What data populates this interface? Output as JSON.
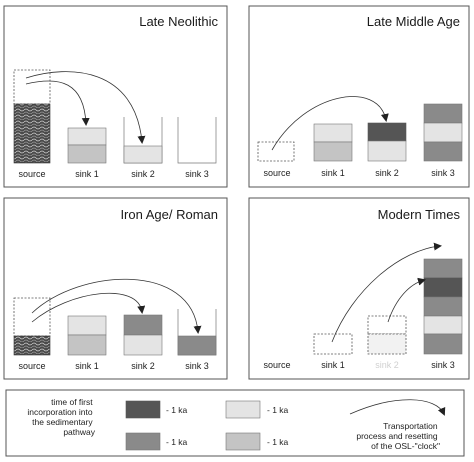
{
  "colors": {
    "darkest": "#555555",
    "dark": "#8a8a8a",
    "light": "#e4e4e4",
    "lighter": "#c4c4c4",
    "frame": "#555555",
    "arrow": "#333333"
  },
  "panels": [
    {
      "title": "Late Neolithic",
      "labels": [
        "source",
        "sink 1",
        "sink 2",
        "sink 3"
      ]
    },
    {
      "title": "Late Middle Age",
      "labels": [
        "source",
        "sink 1",
        "sink 2",
        "sink 3"
      ]
    },
    {
      "title": "Iron Age/ Roman",
      "labels": [
        "source",
        "sink 1",
        "sink 2",
        "sink 3"
      ]
    },
    {
      "title": "Modern Times",
      "labels": [
        "source",
        "sink 1",
        "sink 2",
        "sink 3"
      ]
    }
  ],
  "legend": {
    "heading": [
      "time of first",
      "incorporation into",
      "the sedimentary",
      "pathway"
    ],
    "items": [
      {
        "label": "- 1 ka",
        "color": "#555555"
      },
      {
        "label": "- 1 ka",
        "color": "#e4e4e4"
      },
      {
        "label": "- 1 ka",
        "color": "#8a8a8a"
      },
      {
        "label": "- 1 ka",
        "color": "#c4c4c4"
      }
    ],
    "arrow_text": [
      "Transportation",
      "process and resetting",
      "of the OSL-\"clock\""
    ]
  }
}
